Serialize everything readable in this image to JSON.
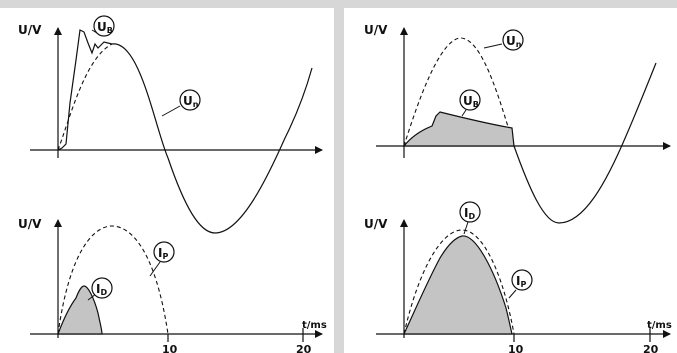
{
  "panels": [
    {
      "voltage": {
        "ylabel": "U/V",
        "mains_label": "U",
        "mains_sub": "n",
        "arc_label": "U",
        "arc_sub": "B"
      },
      "current": {
        "ylabel": "U/V",
        "prospective_label": "I",
        "prospective_sub": "P",
        "let_through_label": "I",
        "let_through_sub": "D",
        "time_axis_label": "t/ms",
        "ticks": [
          "10",
          "20"
        ]
      }
    },
    {
      "voltage": {
        "ylabel": "U/V",
        "mains_label": "U",
        "mains_sub": "n",
        "arc_label": "U",
        "arc_sub": "B"
      },
      "current": {
        "ylabel": "U/V",
        "prospective_label": "I",
        "prospective_sub": "P",
        "let_through_label": "I",
        "let_through_sub": "D",
        "time_axis_label": "t/ms",
        "ticks": [
          "10",
          "20"
        ]
      }
    }
  ]
}
